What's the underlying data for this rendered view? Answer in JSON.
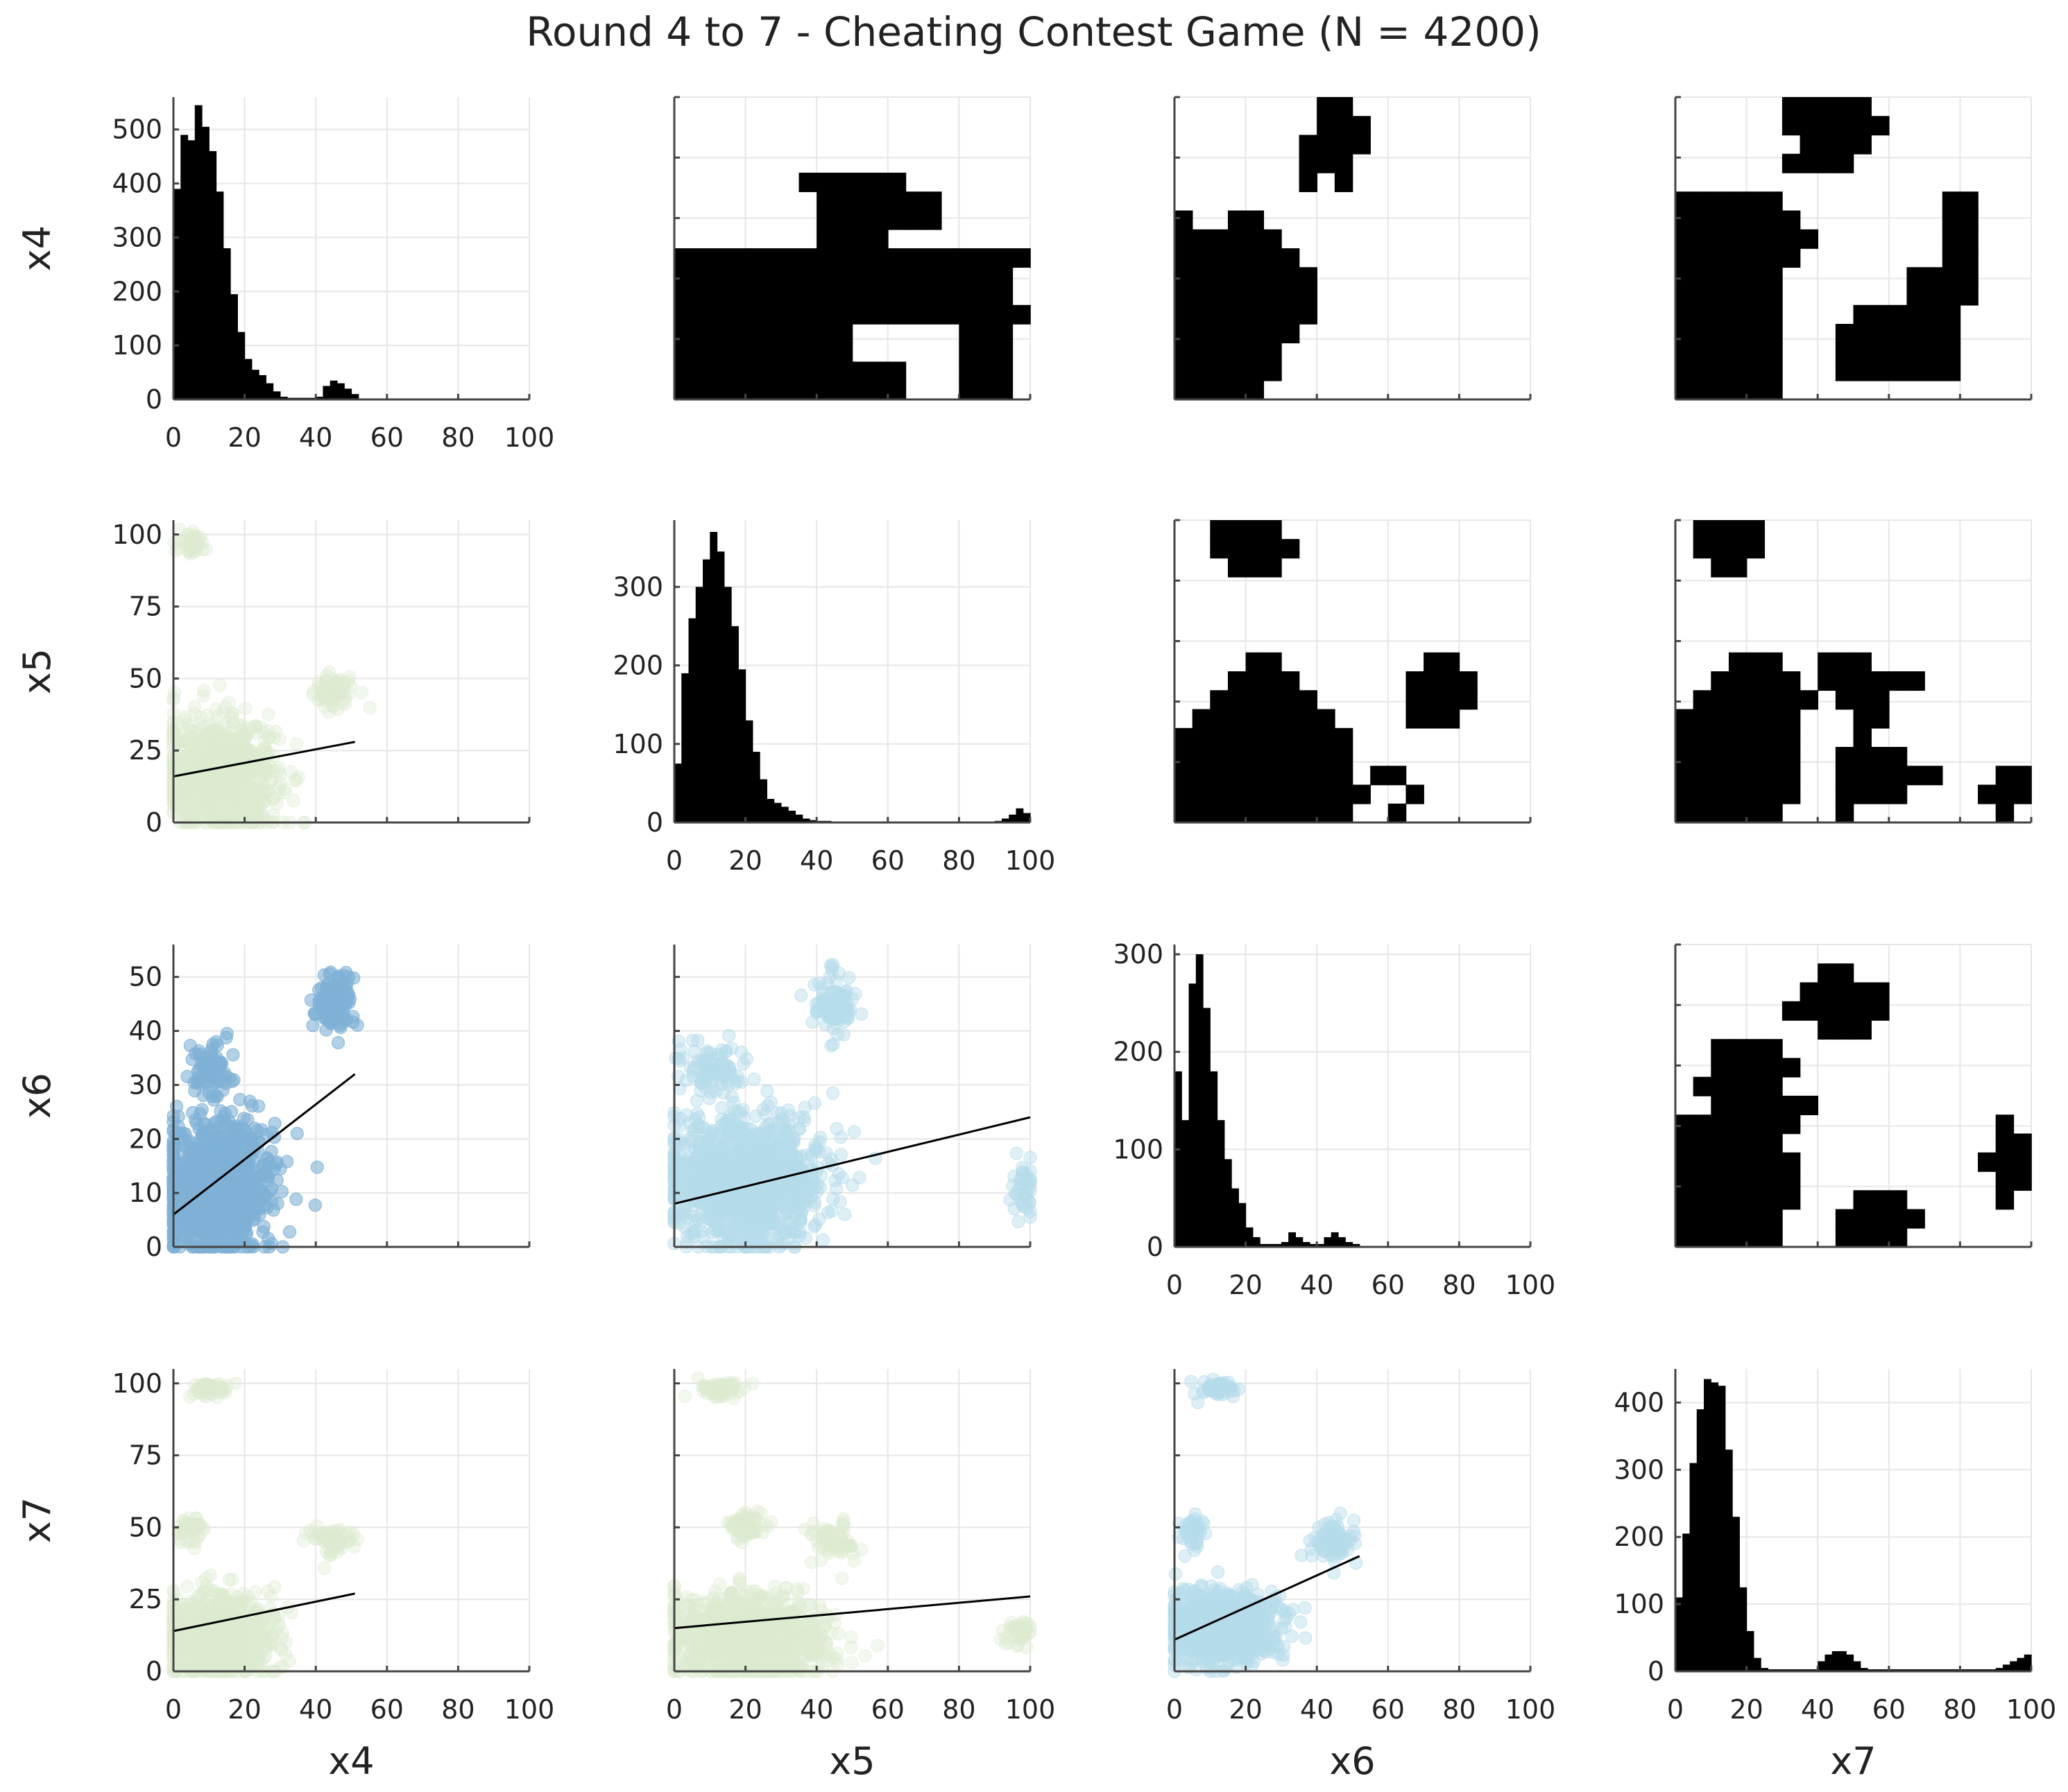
{
  "title": "Round 4 to 7 - Cheating Contest Game (N = 4200)",
  "chart_data": {
    "type": "scatter-matrix",
    "title": "Round 4 to 7 - Cheating Contest Game (N = 4200)",
    "variables": [
      "x4",
      "x5",
      "x6",
      "x7"
    ],
    "x_ticks": [
      0,
      20,
      40,
      60,
      80,
      100
    ],
    "colors": {
      "x4_x6": "#7fb1d6",
      "x5_x6": "#b5dcea",
      "x6_x7": "#b5dcea",
      "green": "#dcebd0",
      "line": "#000000",
      "bars": "#000000"
    },
    "histograms": {
      "x4": {
        "yticks": [
          0,
          100,
          200,
          300,
          400,
          500
        ],
        "ymax": 560,
        "bin_width": 2,
        "xmax": 52,
        "counts": [
          390,
          490,
          480,
          545,
          505,
          460,
          385,
          280,
          195,
          125,
          75,
          55,
          45,
          30,
          15,
          5,
          3,
          3,
          3,
          3,
          5,
          25,
          35,
          30,
          20,
          10
        ]
      },
      "x5": {
        "yticks": [
          0,
          100,
          200,
          300
        ],
        "ymax": 385,
        "bin_width": 2,
        "xmax": 100,
        "counts": [
          75,
          190,
          260,
          300,
          335,
          370,
          345,
          300,
          250,
          195,
          130,
          90,
          55,
          30,
          25,
          20,
          15,
          10,
          5,
          3,
          2,
          2,
          1,
          1,
          1,
          1,
          1,
          1,
          1,
          1,
          1,
          1,
          1,
          1,
          1,
          1,
          1,
          1,
          1,
          1,
          1,
          1,
          1,
          1,
          1,
          2,
          5,
          10,
          18,
          12
        ]
      },
      "x6": {
        "yticks": [
          0,
          100,
          200,
          300
        ],
        "ymax": 310,
        "bin_width": 2,
        "xmax": 52,
        "counts": [
          180,
          130,
          270,
          300,
          245,
          180,
          130,
          90,
          60,
          45,
          20,
          10,
          3,
          3,
          3,
          5,
          15,
          10,
          5,
          3,
          3,
          10,
          15,
          10,
          5,
          3
        ]
      },
      "x7": {
        "yticks": [
          0,
          100,
          200,
          300,
          400
        ],
        "ymax": 450,
        "bin_width": 2,
        "xmax": 100,
        "counts": [
          110,
          205,
          310,
          390,
          435,
          430,
          425,
          330,
          230,
          125,
          60,
          20,
          5,
          3,
          3,
          3,
          3,
          3,
          3,
          3,
          15,
          25,
          30,
          30,
          25,
          15,
          5,
          3,
          3,
          3,
          3,
          3,
          3,
          3,
          3,
          3,
          3,
          3,
          3,
          3,
          3,
          3,
          3,
          3,
          3,
          5,
          10,
          15,
          20,
          25
        ]
      }
    },
    "scatters": [
      {
        "row": "x5",
        "col": "x4",
        "yticks": [
          0,
          25,
          50,
          75,
          100
        ],
        "ylim": [
          0,
          105
        ],
        "color": "green",
        "point_alpha": 0.35,
        "clusters": [
          {
            "cx": 13,
            "cy": 16,
            "rx": 16,
            "ry": 20,
            "n": 900
          },
          {
            "cx": 45,
            "cy": 45,
            "rx": 6,
            "ry": 6,
            "n": 70
          },
          {
            "cx": 5,
            "cy": 97,
            "rx": 4,
            "ry": 4,
            "n": 40
          }
        ],
        "fit": {
          "x": [
            0,
            51
          ],
          "y": [
            16,
            28
          ]
        }
      },
      {
        "row": "x6",
        "col": "x4",
        "yticks": [
          0,
          10,
          20,
          30,
          40,
          50
        ],
        "ylim": [
          0,
          56
        ],
        "color": "x4_x6",
        "point_alpha": 0.6,
        "clusters": [
          {
            "cx": 12,
            "cy": 11,
            "rx": 15,
            "ry": 12,
            "n": 1100
          },
          {
            "cx": 10,
            "cy": 33,
            "rx": 5,
            "ry": 5,
            "n": 90
          },
          {
            "cx": 45,
            "cy": 45,
            "rx": 6,
            "ry": 6,
            "n": 120
          }
        ],
        "fit": {
          "x": [
            0,
            51
          ],
          "y": [
            6,
            32
          ]
        }
      },
      {
        "row": "x6",
        "col": "x5",
        "yticks": [
          0,
          10,
          20,
          30,
          40,
          50
        ],
        "ylim": [
          0,
          56
        ],
        "color": "x5_x6",
        "point_alpha": 0.45,
        "clusters": [
          {
            "cx": 20,
            "cy": 12,
            "rx": 22,
            "ry": 12,
            "n": 1200
          },
          {
            "cx": 10,
            "cy": 33,
            "rx": 8,
            "ry": 5,
            "n": 90
          },
          {
            "cx": 45,
            "cy": 45,
            "rx": 6,
            "ry": 6,
            "n": 90
          },
          {
            "cx": 98,
            "cy": 10,
            "rx": 4,
            "ry": 6,
            "n": 40
          }
        ],
        "fit": {
          "x": [
            0,
            100
          ],
          "y": [
            8,
            24
          ]
        }
      },
      {
        "row": "x7",
        "col": "x4",
        "yticks": [
          0,
          25,
          50,
          75,
          100
        ],
        "ylim": [
          0,
          105
        ],
        "color": "green",
        "point_alpha": 0.35,
        "clusters": [
          {
            "cx": 12,
            "cy": 12,
            "rx": 16,
            "ry": 15,
            "n": 900
          },
          {
            "cx": 5,
            "cy": 50,
            "rx": 4,
            "ry": 6,
            "n": 40
          },
          {
            "cx": 45,
            "cy": 45,
            "rx": 6,
            "ry": 6,
            "n": 60
          },
          {
            "cx": 10,
            "cy": 98,
            "rx": 6,
            "ry": 3,
            "n": 60
          }
        ],
        "fit": {
          "x": [
            0,
            51
          ],
          "y": [
            14,
            27
          ]
        }
      },
      {
        "row": "x7",
        "col": "x5",
        "yticks": [
          0,
          25,
          50,
          75,
          100
        ],
        "ylim": [
          0,
          105
        ],
        "color": "green",
        "point_alpha": 0.35,
        "clusters": [
          {
            "cx": 20,
            "cy": 12,
            "rx": 22,
            "ry": 15,
            "n": 1000
          },
          {
            "cx": 20,
            "cy": 50,
            "rx": 6,
            "ry": 6,
            "n": 60
          },
          {
            "cx": 45,
            "cy": 45,
            "rx": 7,
            "ry": 7,
            "n": 60
          },
          {
            "cx": 13,
            "cy": 98,
            "rx": 6,
            "ry": 3,
            "n": 60
          },
          {
            "cx": 97,
            "cy": 13,
            "rx": 4,
            "ry": 6,
            "n": 40
          }
        ],
        "fit": {
          "x": [
            0,
            100
          ],
          "y": [
            15,
            26
          ]
        }
      },
      {
        "row": "x7",
        "col": "x6",
        "yticks": [
          0,
          25,
          50,
          75,
          100
        ],
        "ylim": [
          0,
          105
        ],
        "color": "x6_x7",
        "point_alpha": 0.45,
        "clusters": [
          {
            "cx": 13,
            "cy": 15,
            "rx": 15,
            "ry": 12,
            "n": 1000
          },
          {
            "cx": 45,
            "cy": 45,
            "rx": 6,
            "ry": 7,
            "n": 90
          },
          {
            "cx": 12,
            "cy": 98,
            "rx": 5,
            "ry": 3,
            "n": 50
          },
          {
            "cx": 5,
            "cy": 48,
            "rx": 4,
            "ry": 6,
            "n": 40
          }
        ],
        "fit": {
          "x": [
            0,
            52
          ],
          "y": [
            11,
            40
          ]
        }
      }
    ],
    "heatmaps": [
      {
        "row": "x4",
        "col": "x5",
        "cells": [
          "....................",
          "....................",
          "....................",
          "....................",
          ".......######.......",
          "........#######.....",
          "........#######.....",
          "........####........",
          "####################",
          "###################.",
          "###################.",
          "#####################",
          "##########......###.",
          "##########......###.",
          "#############...###.",
          "#############...###."
        ]
      },
      {
        "row": "x4",
        "col": "x6",
        "cells": [
          "........##..........",
          "........###.........",
          ".......####.........",
          ".......###..........",
          ".......#.#..........",
          "....................",
          "#..##...............",
          "######..............",
          "#######.............",
          "########............",
          "########............",
          "########............",
          "#######.............",
          "######..............",
          "######..............",
          "#####..............."
        ]
      },
      {
        "row": "x4",
        "col": "x7",
        "cells": [
          "......#####.........",
          "......######........",
          ".......####.........",
          "......####..........",
          "....................",
          "######.........##...",
          "#######........##...",
          "########.......##...",
          "#######........##...",
          "######.......####...",
          "######.......####...",
          "######....######....",
          "######...#######....",
          "######...#######....",
          "######...#######....",
          "######..............."
        ]
      },
      {
        "row": "x5",
        "col": "x6",
        "cells": [
          "..####..............",
          "..#####.............",
          "...###..............",
          "....................",
          "....................",
          "....................",
          "....................",
          "....##........##....",
          "...####......####...",
          "..######.....####...",
          ".########....###....",
          "##########..........",
          "##########..........",
          "##########.##.......",
          "###########..#......",
          "##########..#......."
        ]
      },
      {
        "row": "x5",
        "col": "x7",
        "cells": [
          ".####...............",
          ".####...............",
          "..##................",
          "....................",
          "....................",
          "....................",
          "....................",
          "...###..###.........",
          "..#####.######......",
          ".#######.###........",
          "#######...##........",
          "#######...#.........",
          "#######..####.......",
          "#######..######...##",
          "#######..####....###",
          "######...#........#"
        ]
      },
      {
        "row": "x6",
        "col": "x7",
        "cells": [
          "....................",
          "........##..........",
          ".......#####........",
          "......######........",
          "........###.........",
          "..####..............",
          "..#####.............",
          ".#####..............",
          "..######............",
          "#######...........#.",
          "######............##",
          "#######..........###",
          "#######...........##",
          "#######...###.....#.",
          "######...#####......",
          "######...####......."
        ]
      }
    ]
  }
}
